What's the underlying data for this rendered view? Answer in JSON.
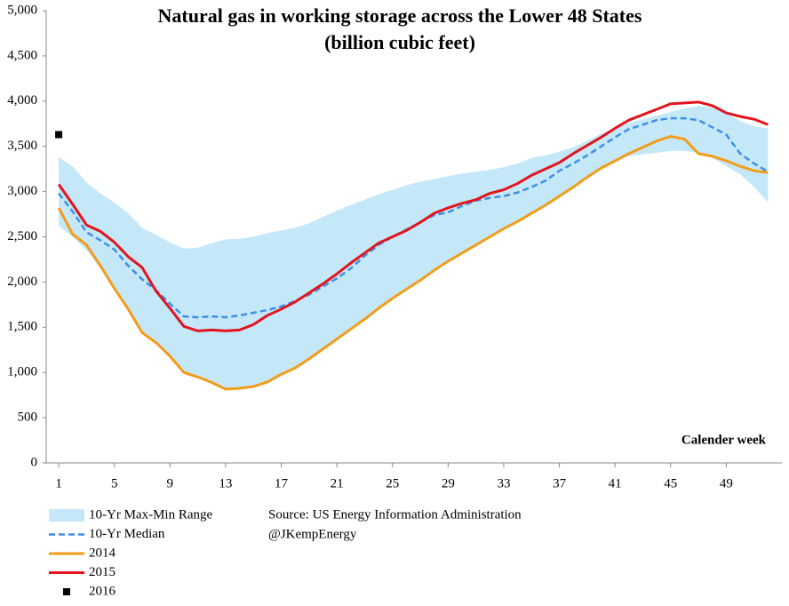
{
  "chart_data": {
    "type": "line",
    "title": [
      "Natural gas in working storage across the Lower 48 States",
      "(billion cubic feet)"
    ],
    "x_annotation": "Calender week",
    "source": [
      "Source: US Energy Information Administration",
      "@JKempEnergy"
    ],
    "x": [
      1,
      2,
      3,
      4,
      5,
      6,
      7,
      8,
      9,
      10,
      11,
      12,
      13,
      14,
      15,
      16,
      17,
      18,
      19,
      20,
      21,
      22,
      23,
      24,
      25,
      26,
      27,
      28,
      29,
      30,
      31,
      32,
      33,
      34,
      35,
      36,
      37,
      38,
      39,
      40,
      41,
      42,
      43,
      44,
      45,
      46,
      47,
      48,
      49,
      50,
      51,
      52
    ],
    "xlim": [
      0.1,
      53
    ],
    "xticks": [
      1,
      5,
      9,
      13,
      17,
      21,
      25,
      29,
      33,
      37,
      41,
      45,
      49
    ],
    "ylim": [
      0,
      5000
    ],
    "yticks": [
      0,
      500,
      {
        "value": 1000,
        "label": "1,000"
      },
      {
        "value": 1500,
        "label": "1,500"
      },
      {
        "value": 2000,
        "label": "2,000"
      },
      {
        "value": 2500,
        "label": "2,500"
      },
      {
        "value": 3000,
        "label": "3,000"
      },
      {
        "value": 3500,
        "label": "3,500"
      },
      {
        "value": 4000,
        "label": "4,000"
      },
      {
        "value": 4500,
        "label": "4,500"
      },
      {
        "value": 5000,
        "label": "5,000"
      }
    ],
    "series": [
      {
        "name": "10-Yr Max-Min Range",
        "kind": "band",
        "color": "#c5e8f9",
        "values": [
          3380,
          3280,
          3100,
          2980,
          2880,
          2760,
          2600,
          2520,
          2440,
          2370,
          2380,
          2430,
          2470,
          2480,
          2500,
          2540,
          2570,
          2600,
          2650,
          2720,
          2790,
          2850,
          2910,
          2970,
          3020,
          3070,
          3110,
          3140,
          3170,
          3200,
          3220,
          3240,
          3270,
          3310,
          3370,
          3400,
          3440,
          3490,
          3560,
          3640,
          3700,
          3760,
          3800,
          3840,
          3880,
          3920,
          3950,
          3930,
          3870,
          3780,
          3720,
          3700
        ],
        "low": [
          2620,
          2500,
          2350,
          2150,
          1920,
          1700,
          1450,
          1330,
          1180,
          1000,
          950,
          890,
          820,
          830,
          850,
          900,
          980,
          1050,
          1150,
          1260,
          1370,
          1480,
          1590,
          1710,
          1820,
          1920,
          2020,
          2130,
          2230,
          2320,
          2410,
          2500,
          2590,
          2680,
          2760,
          2850,
          2950,
          3050,
          3160,
          3260,
          3340,
          3390,
          3410,
          3430,
          3450,
          3450,
          3430,
          3370,
          3280,
          3190,
          3050,
          2880
        ]
      },
      {
        "name": "10-Yr Median",
        "kind": "line",
        "dash": true,
        "color": "#3d8fe8",
        "values": [
          2980,
          2780,
          2550,
          2460,
          2360,
          2180,
          2030,
          1910,
          1760,
          1620,
          1610,
          1620,
          1610,
          1630,
          1660,
          1690,
          1730,
          1790,
          1860,
          1950,
          2040,
          2150,
          2290,
          2410,
          2500,
          2580,
          2660,
          2740,
          2770,
          2840,
          2900,
          2930,
          2950,
          2990,
          3050,
          3120,
          3230,
          3310,
          3400,
          3500,
          3600,
          3690,
          3740,
          3790,
          3810,
          3810,
          3790,
          3710,
          3630,
          3420,
          3310,
          3220
        ]
      },
      {
        "name": "2014",
        "kind": "line",
        "color": "#f39c1a",
        "values": [
          2820,
          2530,
          2410,
          2180,
          1930,
          1700,
          1440,
          1330,
          1180,
          1000,
          950,
          890,
          815,
          825,
          845,
          895,
          980,
          1050,
          1150,
          1260,
          1370,
          1480,
          1590,
          1710,
          1820,
          1920,
          2020,
          2130,
          2230,
          2320,
          2410,
          2500,
          2590,
          2670,
          2760,
          2850,
          2950,
          3050,
          3160,
          3260,
          3340,
          3420,
          3490,
          3560,
          3610,
          3580,
          3420,
          3390,
          3340,
          3280,
          3230,
          3210
        ]
      },
      {
        "name": "2015",
        "kind": "line",
        "color": "#e3141e",
        "values": [
          3080,
          2860,
          2630,
          2560,
          2440,
          2280,
          2160,
          1900,
          1710,
          1510,
          1460,
          1470,
          1460,
          1470,
          1530,
          1630,
          1700,
          1780,
          1880,
          1980,
          2090,
          2210,
          2320,
          2430,
          2500,
          2570,
          2660,
          2760,
          2820,
          2870,
          2910,
          2980,
          3020,
          3090,
          3180,
          3250,
          3320,
          3420,
          3510,
          3600,
          3700,
          3790,
          3850,
          3910,
          3970,
          3980,
          3990,
          3950,
          3870,
          3830,
          3800,
          3740
        ]
      },
      {
        "name": "2016",
        "kind": "marker",
        "color": "#000000",
        "values": [
          3630,
          null,
          null,
          null,
          null,
          null,
          null,
          null,
          null,
          null,
          null,
          null,
          null,
          null,
          null,
          null,
          null,
          null,
          null,
          null,
          null,
          null,
          null,
          null,
          null,
          null,
          null,
          null,
          null,
          null,
          null,
          null,
          null,
          null,
          null,
          null,
          null,
          null,
          null,
          null,
          null,
          null,
          null,
          null,
          null,
          null,
          null,
          null,
          null,
          null,
          null,
          null
        ]
      }
    ]
  }
}
